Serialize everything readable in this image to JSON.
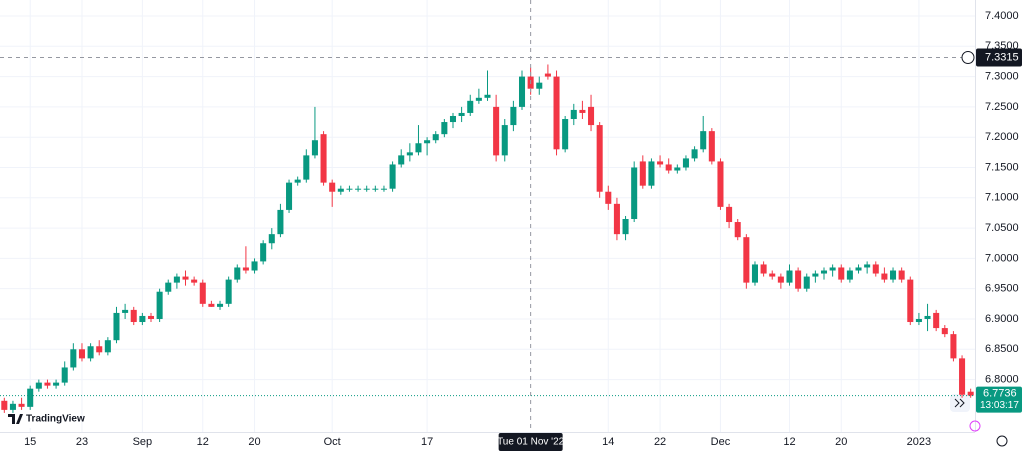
{
  "chart_data": {
    "type": "candlestick",
    "up_color": "#089981",
    "down_color": "#f23645",
    "open": [
      6.765,
      6.75,
      6.76,
      6.755,
      6.785,
      6.795,
      6.79,
      6.795,
      6.82,
      6.85,
      6.835,
      6.855,
      6.845,
      6.865,
      6.91,
      6.915,
      6.895,
      6.905,
      6.9,
      6.945,
      6.96,
      6.97,
      6.965,
      6.96,
      6.925,
      6.92,
      6.925,
      6.965,
      6.985,
      6.98,
      6.995,
      7.025,
      7.04,
      7.08,
      7.125,
      7.13,
      7.17,
      7.205,
      7.125,
      7.11,
      7.115,
      7.115,
      7.115,
      7.115,
      7.115,
      7.115,
      7.155,
      7.17,
      7.175,
      7.19,
      7.195,
      7.205,
      7.225,
      7.235,
      7.24,
      7.26,
      7.265,
      7.25,
      7.17,
      7.22,
      7.25,
      7.3,
      7.28,
      7.305,
      7.3,
      7.18,
      7.23,
      7.245,
      7.25,
      7.22,
      7.11,
      7.09,
      7.04,
      7.065,
      7.16,
      7.12,
      7.16,
      7.155,
      7.145,
      7.15,
      7.165,
      7.18,
      7.21,
      7.16,
      7.085,
      7.06,
      7.035,
      6.96,
      6.99,
      6.975,
      6.97,
      6.96,
      6.98,
      6.95,
      6.97,
      6.975,
      6.98,
      6.985,
      6.965,
      6.98,
      6.985,
      6.99,
      6.975,
      6.965,
      6.98,
      6.965,
      6.895,
      6.9,
      6.91,
      6.885,
      6.875,
      6.835,
      6.78
    ],
    "high": [
      6.77,
      6.765,
      6.77,
      6.79,
      6.8,
      6.8,
      6.8,
      6.83,
      6.86,
      6.86,
      6.86,
      6.865,
      6.87,
      6.92,
      6.925,
      6.92,
      6.91,
      6.91,
      6.95,
      6.965,
      6.975,
      6.98,
      6.97,
      6.965,
      6.93,
      6.93,
      6.97,
      6.99,
      7.02,
      7.0,
      7.03,
      7.05,
      7.09,
      7.13,
      7.135,
      7.18,
      7.25,
      7.21,
      7.13,
      7.12,
      7.12,
      7.12,
      7.12,
      7.12,
      7.12,
      7.16,
      7.18,
      7.19,
      7.22,
      7.2,
      7.21,
      7.23,
      7.24,
      7.25,
      7.27,
      7.28,
      7.31,
      7.27,
      7.23,
      7.26,
      7.31,
      7.315,
      7.3,
      7.32,
      7.31,
      7.235,
      7.255,
      7.26,
      7.27,
      7.225,
      7.12,
      7.1,
      7.07,
      7.16,
      7.17,
      7.165,
      7.17,
      7.165,
      7.155,
      7.17,
      7.185,
      7.235,
      7.215,
      7.165,
      7.09,
      7.065,
      7.04,
      6.995,
      6.995,
      6.98,
      6.975,
      6.99,
      6.985,
      6.975,
      6.98,
      6.985,
      6.99,
      6.99,
      6.985,
      6.99,
      6.995,
      6.995,
      6.985,
      6.985,
      6.985,
      6.97,
      6.91,
      6.925,
      6.915,
      6.89,
      6.88,
      6.84,
      6.785
    ],
    "low": [
      6.745,
      6.745,
      6.75,
      6.75,
      6.78,
      6.785,
      6.785,
      6.79,
      6.815,
      6.83,
      6.83,
      6.84,
      6.84,
      6.86,
      6.9,
      6.89,
      6.89,
      6.895,
      6.895,
      6.94,
      6.95,
      6.955,
      6.955,
      6.92,
      6.92,
      6.915,
      6.92,
      6.96,
      6.975,
      6.975,
      6.99,
      7.015,
      7.035,
      7.075,
      7.12,
      7.125,
      7.165,
      7.12,
      7.085,
      7.105,
      7.11,
      7.11,
      7.11,
      7.11,
      7.11,
      7.11,
      7.15,
      7.16,
      7.17,
      7.17,
      7.19,
      7.2,
      7.215,
      7.225,
      7.235,
      7.255,
      7.26,
      7.16,
      7.16,
      7.21,
      7.245,
      7.27,
      7.27,
      7.295,
      7.17,
      7.175,
      7.22,
      7.23,
      7.21,
      7.1,
      7.08,
      7.03,
      7.03,
      7.06,
      7.115,
      7.115,
      7.15,
      7.14,
      7.14,
      7.145,
      7.16,
      7.175,
      7.155,
      7.08,
      7.05,
      7.03,
      6.95,
      6.955,
      6.97,
      6.965,
      6.95,
      6.955,
      6.945,
      6.945,
      6.96,
      6.965,
      6.97,
      6.96,
      6.96,
      6.975,
      6.975,
      6.97,
      6.96,
      6.96,
      6.96,
      6.89,
      6.89,
      6.88,
      6.88,
      6.87,
      6.83,
      6.77,
      6.77
    ],
    "close": [
      6.75,
      6.76,
      6.755,
      6.785,
      6.795,
      6.79,
      6.795,
      6.82,
      6.85,
      6.835,
      6.855,
      6.845,
      6.865,
      6.91,
      6.915,
      6.895,
      6.905,
      6.9,
      6.945,
      6.96,
      6.97,
      6.965,
      6.96,
      6.925,
      6.92,
      6.925,
      6.965,
      6.985,
      6.98,
      6.995,
      7.025,
      7.04,
      7.08,
      7.125,
      7.13,
      7.17,
      7.195,
      7.125,
      7.11,
      7.115,
      7.115,
      7.115,
      7.115,
      7.115,
      7.115,
      7.155,
      7.17,
      7.175,
      7.19,
      7.195,
      7.205,
      7.225,
      7.235,
      7.24,
      7.26,
      7.265,
      7.27,
      7.17,
      7.22,
      7.25,
      7.3,
      7.28,
      7.29,
      7.3,
      7.18,
      7.23,
      7.245,
      7.24,
      7.22,
      7.11,
      7.09,
      7.04,
      7.065,
      7.15,
      7.12,
      7.16,
      7.155,
      7.145,
      7.15,
      7.165,
      7.18,
      7.21,
      7.16,
      7.085,
      7.06,
      7.035,
      6.96,
      6.99,
      6.975,
      6.97,
      6.96,
      6.98,
      6.95,
      6.97,
      6.975,
      6.98,
      6.985,
      6.965,
      6.98,
      6.985,
      6.99,
      6.975,
      6.965,
      6.98,
      6.965,
      6.895,
      6.9,
      6.905,
      6.885,
      6.875,
      6.835,
      6.775,
      6.7736
    ],
    "ylim": [
      6.7135,
      7.4264
    ],
    "xlim": [
      -0.5,
      112.5
    ],
    "yticks": [
      {
        "value": 7.4,
        "label": "7.4000"
      },
      {
        "value": 7.35,
        "label": "7.3500"
      },
      {
        "value": 7.3,
        "label": "7.3000"
      },
      {
        "value": 7.25,
        "label": "7.2500"
      },
      {
        "value": 7.2,
        "label": "7.2000"
      },
      {
        "value": 7.15,
        "label": "7.1500"
      },
      {
        "value": 7.1,
        "label": "7.1000"
      },
      {
        "value": 7.05,
        "label": "7.0500"
      },
      {
        "value": 7.0,
        "label": "7.0000"
      },
      {
        "value": 6.95,
        "label": "6.9500"
      },
      {
        "value": 6.9,
        "label": "6.9000"
      },
      {
        "value": 6.85,
        "label": "6.8500"
      },
      {
        "value": 6.8,
        "label": "6.8000"
      }
    ],
    "xticks": [
      {
        "value": 3,
        "label": "15"
      },
      {
        "value": 9,
        "label": "23"
      },
      {
        "value": 16,
        "label": "Sep"
      },
      {
        "value": 23,
        "label": "12"
      },
      {
        "value": 29,
        "label": "20"
      },
      {
        "value": 38,
        "label": "Oct"
      },
      {
        "value": 49,
        "label": "17"
      },
      {
        "value": 70,
        "label": "14"
      },
      {
        "value": 76,
        "label": "22"
      },
      {
        "value": 83,
        "label": "Dec"
      },
      {
        "value": 91,
        "label": "12"
      },
      {
        "value": 97,
        "label": "20"
      },
      {
        "value": 106,
        "label": "2023"
      }
    ],
    "crosshair": {
      "x": 61,
      "x_label": "Tue 01 Nov '22",
      "price": 7.3315
    },
    "last_price": 6.7736,
    "countdown": "13:03:17",
    "logo": "TradingView"
  }
}
